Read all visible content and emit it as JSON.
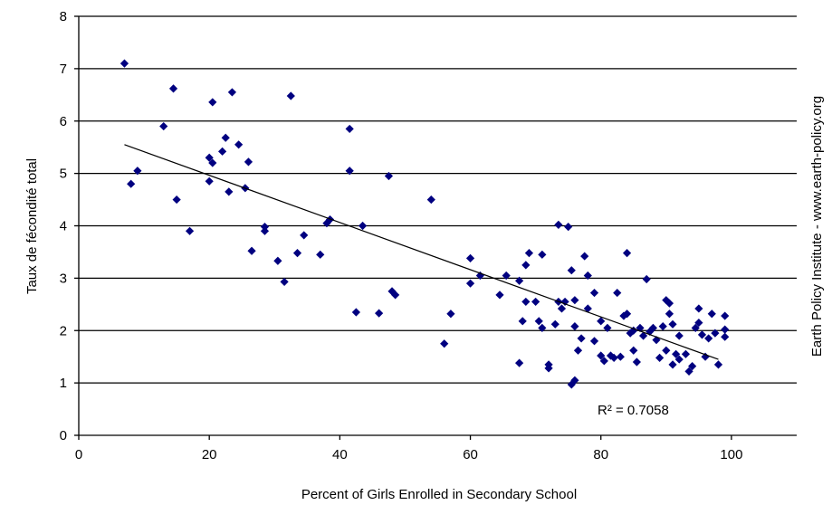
{
  "chart_data": {
    "type": "scatter",
    "xlabel": "Percent of Girls Enrolled in Secondary School",
    "ylabel": "Taux de fécondité total",
    "source": "Earth Policy Institute - www.earth-policy.org",
    "xlim": [
      0,
      110
    ],
    "ylim": [
      0,
      8
    ],
    "xticks": [
      0,
      20,
      40,
      60,
      80,
      100
    ],
    "yticks": [
      0,
      1,
      2,
      3,
      4,
      5,
      6,
      7,
      8
    ],
    "grid": "horizontal",
    "marker_color": "#000080",
    "trendline": {
      "x": [
        7,
        98
      ],
      "y": [
        5.55,
        1.45
      ]
    },
    "r_squared_label": "R² = 0.7058",
    "points": [
      [
        7,
        7.1
      ],
      [
        8,
        4.8
      ],
      [
        9,
        5.05
      ],
      [
        13,
        5.9
      ],
      [
        14.5,
        6.62
      ],
      [
        15,
        4.5
      ],
      [
        17,
        3.9
      ],
      [
        20,
        4.85
      ],
      [
        20,
        5.3
      ],
      [
        20.5,
        5.2
      ],
      [
        20.5,
        6.36
      ],
      [
        22,
        5.42
      ],
      [
        22.5,
        5.68
      ],
      [
        23,
        4.65
      ],
      [
        23.5,
        6.55
      ],
      [
        24.5,
        5.55
      ],
      [
        25.5,
        4.72
      ],
      [
        26,
        5.22
      ],
      [
        26.5,
        3.52
      ],
      [
        28.5,
        3.9
      ],
      [
        28.5,
        3.98
      ],
      [
        30.5,
        3.33
      ],
      [
        31.5,
        2.93
      ],
      [
        32.5,
        6.48
      ],
      [
        33.5,
        3.48
      ],
      [
        34.5,
        3.82
      ],
      [
        37,
        3.45
      ],
      [
        38,
        4.05
      ],
      [
        38.5,
        4.12
      ],
      [
        41.5,
        5.05
      ],
      [
        41.5,
        5.85
      ],
      [
        42.5,
        2.35
      ],
      [
        43.5,
        4.0
      ],
      [
        46,
        2.33
      ],
      [
        47.5,
        4.95
      ],
      [
        48,
        2.75
      ],
      [
        48.5,
        2.68
      ],
      [
        54,
        4.5
      ],
      [
        56,
        1.75
      ],
      [
        57,
        2.32
      ],
      [
        60,
        3.38
      ],
      [
        60,
        2.9
      ],
      [
        61.5,
        3.05
      ],
      [
        64.5,
        2.68
      ],
      [
        65.5,
        3.05
      ],
      [
        67.5,
        1.38
      ],
      [
        67.5,
        2.95
      ],
      [
        68,
        2.18
      ],
      [
        68.5,
        3.25
      ],
      [
        68.5,
        2.55
      ],
      [
        69,
        3.48
      ],
      [
        70,
        2.55
      ],
      [
        70.5,
        2.18
      ],
      [
        71,
        3.45
      ],
      [
        71,
        2.05
      ],
      [
        72,
        1.35
      ],
      [
        72,
        1.28
      ],
      [
        73,
        2.12
      ],
      [
        73.5,
        4.02
      ],
      [
        73.5,
        2.55
      ],
      [
        74,
        2.42
      ],
      [
        74.5,
        2.55
      ],
      [
        75,
        3.98
      ],
      [
        75.5,
        0.97
      ],
      [
        75.5,
        3.15
      ],
      [
        76,
        2.08
      ],
      [
        76,
        1.05
      ],
      [
        76,
        2.58
      ],
      [
        76.5,
        1.62
      ],
      [
        77,
        1.85
      ],
      [
        77.5,
        3.42
      ],
      [
        78,
        3.05
      ],
      [
        78,
        2.42
      ],
      [
        79,
        1.8
      ],
      [
        79,
        2.72
      ],
      [
        80,
        2.18
      ],
      [
        80,
        1.52
      ],
      [
        80.5,
        1.42
      ],
      [
        81,
        2.05
      ],
      [
        81.5,
        1.52
      ],
      [
        82,
        1.48
      ],
      [
        82.5,
        2.72
      ],
      [
        83,
        1.5
      ],
      [
        83.5,
        2.28
      ],
      [
        84,
        3.48
      ],
      [
        84,
        2.32
      ],
      [
        84.5,
        1.95
      ],
      [
        85,
        2.0
      ],
      [
        85,
        1.62
      ],
      [
        85.5,
        1.4
      ],
      [
        86,
        2.05
      ],
      [
        86.5,
        1.9
      ],
      [
        87,
        2.98
      ],
      [
        87.5,
        1.98
      ],
      [
        88,
        2.05
      ],
      [
        88.5,
        1.82
      ],
      [
        89,
        1.48
      ],
      [
        89.5,
        2.08
      ],
      [
        90,
        1.62
      ],
      [
        90,
        2.58
      ],
      [
        90.5,
        2.52
      ],
      [
        90.5,
        2.32
      ],
      [
        91,
        1.35
      ],
      [
        91,
        2.12
      ],
      [
        91.5,
        1.55
      ],
      [
        92,
        1.45
      ],
      [
        92,
        1.9
      ],
      [
        93,
        1.55
      ],
      [
        93.5,
        1.22
      ],
      [
        94,
        1.32
      ],
      [
        94.5,
        2.05
      ],
      [
        95,
        2.15
      ],
      [
        95,
        2.42
      ],
      [
        95.5,
        1.92
      ],
      [
        96,
        1.5
      ],
      [
        96.5,
        1.85
      ],
      [
        97,
        2.32
      ],
      [
        97.5,
        1.95
      ],
      [
        98,
        1.35
      ],
      [
        99,
        2.28
      ],
      [
        99,
        2.02
      ],
      [
        99,
        1.88
      ]
    ]
  }
}
